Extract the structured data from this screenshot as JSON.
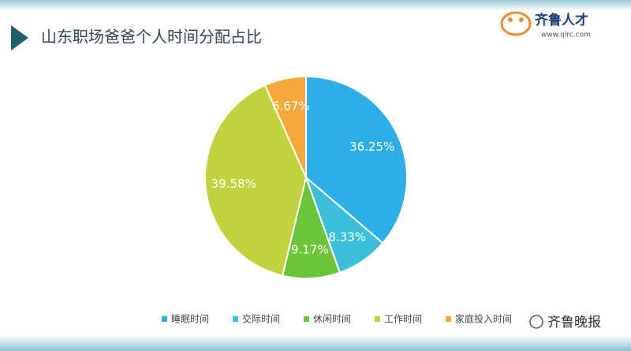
{
  "chart_data": {
    "type": "pie",
    "title": "山东职场爸爸个人时间分配占比",
    "categories": [
      "睡眠时间",
      "交际时间",
      "休闲时间",
      "工作时间",
      "家庭投入时间"
    ],
    "values": [
      36.25,
      8.33,
      9.17,
      39.58,
      6.67
    ],
    "value_labels": [
      "36.25%",
      "8.33%",
      "9.17%",
      "39.58%",
      "6.67%"
    ],
    "colors": [
      "#2eaee8",
      "#3dbfd9",
      "#6cc43a",
      "#c0d23c",
      "#f5a83b"
    ],
    "legend": "bottom"
  },
  "logo": {
    "name": "齐鲁人才",
    "url": "www.qlrc.com"
  },
  "watermark": "齐鲁晚报"
}
